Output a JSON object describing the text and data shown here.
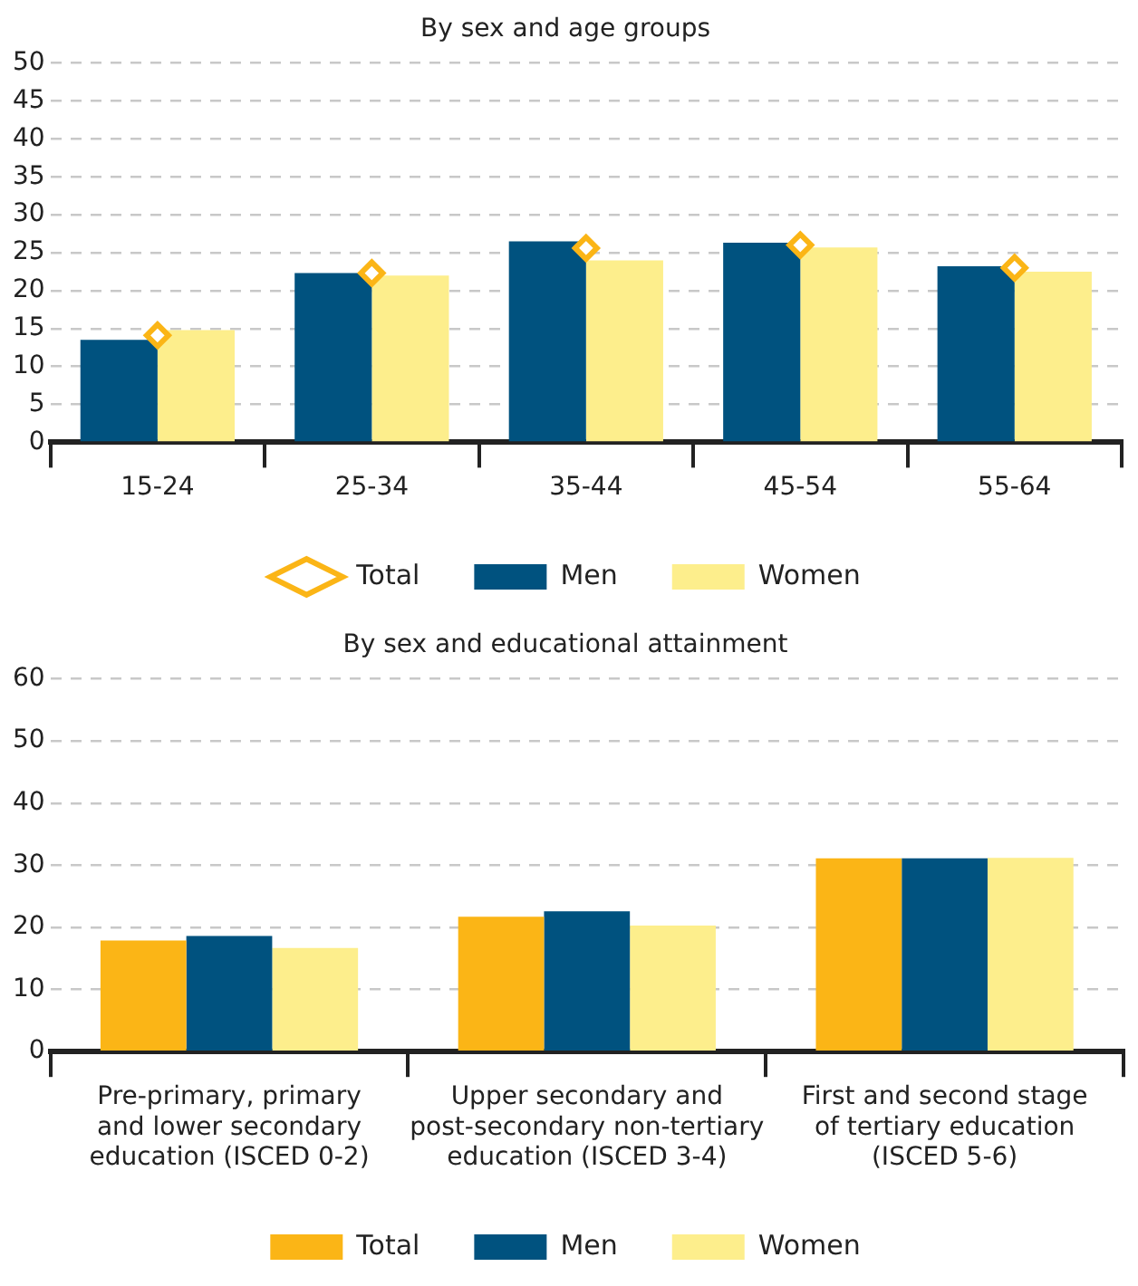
{
  "chart_data": [
    {
      "type": "bar",
      "title": "By sex and age groups",
      "categories": [
        "15-24",
        "25-34",
        "35-44",
        "45-54",
        "55-64"
      ],
      "series": [
        {
          "name": "Men",
          "color": "#00527f",
          "values": [
            13.5,
            22.3,
            26.5,
            26.3,
            23.2
          ]
        },
        {
          "name": "Women",
          "color": "#fdee8c",
          "values": [
            14.8,
            22.0,
            24.0,
            25.7,
            22.5
          ]
        },
        {
          "name": "Total",
          "type": "scatter",
          "marker": "diamond",
          "color": "#fbb516",
          "values": [
            14.1,
            22.3,
            25.6,
            26.0,
            23.0
          ]
        }
      ],
      "ylim": [
        0,
        50
      ],
      "yticks": [
        0,
        5,
        10,
        15,
        20,
        25,
        30,
        35,
        40,
        45,
        50
      ],
      "grid": "y",
      "legend": "bottom"
    },
    {
      "type": "bar",
      "title": "By sex and educational attainment",
      "categories": [
        "Pre-primary, primary\nand lower secondary\neducation (ISCED 0-2)",
        "Upper secondary and\npost-secondary non-tertiary\neducation (ISCED 3-4)",
        "First and second stage\nof tertiary education\n(ISCED 5-6)"
      ],
      "series": [
        {
          "name": "Total",
          "color": "#fbb516",
          "values": [
            17.9,
            21.7,
            31.1
          ]
        },
        {
          "name": "Men",
          "color": "#00527f",
          "values": [
            18.6,
            22.6,
            31.1
          ]
        },
        {
          "name": "Women",
          "color": "#fdee8c",
          "values": [
            16.7,
            20.3,
            31.2
          ]
        }
      ],
      "ylim": [
        0,
        60
      ],
      "yticks": [
        0,
        10,
        20,
        30,
        40,
        50,
        60
      ],
      "grid": "y",
      "legend": "bottom"
    }
  ]
}
